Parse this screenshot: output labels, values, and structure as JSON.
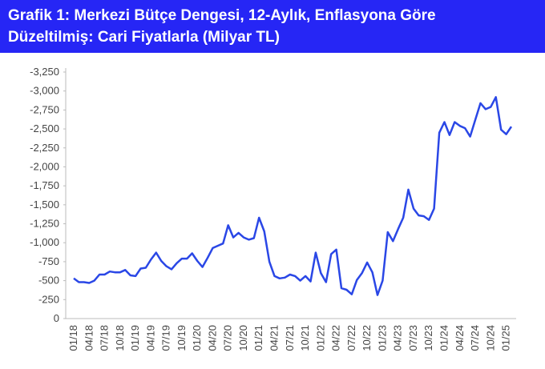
{
  "chart_data": {
    "type": "line",
    "title": [
      "Grafik 1: Merkezi Bütçe Dengesi, 12-Aylık, Enflasyona Göre",
      "Düzeltilmiş: Cari Fiyatlarla (Milyar TL)"
    ],
    "categories": [
      "01/18",
      null,
      null,
      "04/18",
      null,
      null,
      "07/18",
      null,
      null,
      "10/18",
      null,
      null,
      "01/19",
      null,
      null,
      "04/19",
      null,
      null,
      "07/19",
      null,
      null,
      "10/19",
      null,
      null,
      "01/20",
      null,
      null,
      "04/20",
      null,
      null,
      "07/20",
      null,
      null,
      "10/20",
      null,
      null,
      "01/21",
      null,
      null,
      "04/21",
      null,
      null,
      "07/21",
      null,
      null,
      "10/21",
      null,
      null,
      "01/22",
      null,
      null,
      "04/22",
      null,
      null,
      "07/22",
      null,
      null,
      "10/22",
      null,
      null,
      "01/23",
      null,
      null,
      "04/23",
      null,
      null,
      "07/23",
      null,
      null,
      "10/23",
      null,
      null,
      "01/24",
      null,
      null,
      "04/24",
      null,
      null,
      "07/24",
      null,
      null,
      "10/24",
      null,
      null,
      "01/25",
      null
    ],
    "series": [
      {
        "name": "Merkezi Bütçe Dengesi",
        "color": "#2a47e6",
        "values": [
          -530,
          -480,
          -480,
          -470,
          -500,
          -580,
          -580,
          -620,
          -610,
          -610,
          -640,
          -570,
          -560,
          -660,
          -670,
          -780,
          -870,
          -760,
          -690,
          -650,
          -730,
          -790,
          -790,
          -860,
          -760,
          -680,
          -800,
          -930,
          -960,
          -990,
          -1230,
          -1070,
          -1130,
          -1070,
          -1040,
          -1060,
          -1330,
          -1150,
          -750,
          -560,
          -530,
          -540,
          -580,
          -560,
          -500,
          -560,
          -490,
          -870,
          -600,
          -480,
          -850,
          -910,
          -400,
          -380,
          -320,
          -510,
          -600,
          -740,
          -610,
          -310,
          -500,
          -1140,
          -1020,
          -1180,
          -1330,
          -1700,
          -1450,
          -1360,
          -1350,
          -1300,
          -1450,
          -2450,
          -2590,
          -2420,
          -2590,
          -2540,
          -2510,
          -2400,
          -2620,
          -2840,
          -2760,
          -2790,
          -2920,
          -2490,
          -2430,
          -2530
        ]
      }
    ],
    "ylim": [
      0,
      -3250
    ],
    "yticks": [
      0,
      -250,
      -500,
      -750,
      {
        "value": -1000,
        "label": "-1,000"
      },
      {
        "value": -1250,
        "label": "-1,250"
      },
      {
        "value": -1500,
        "label": "-1,500"
      },
      {
        "value": -1750,
        "label": "-1,750"
      },
      {
        "value": -2000,
        "label": "-2,000"
      },
      {
        "value": -2250,
        "label": "-2,250"
      },
      {
        "value": -2500,
        "label": "-2,500"
      },
      {
        "value": -2750,
        "label": "-2,750"
      },
      {
        "value": -3000,
        "label": "-3,000"
      },
      {
        "value": -3250,
        "label": "-3,250"
      }
    ],
    "grid": false
  }
}
